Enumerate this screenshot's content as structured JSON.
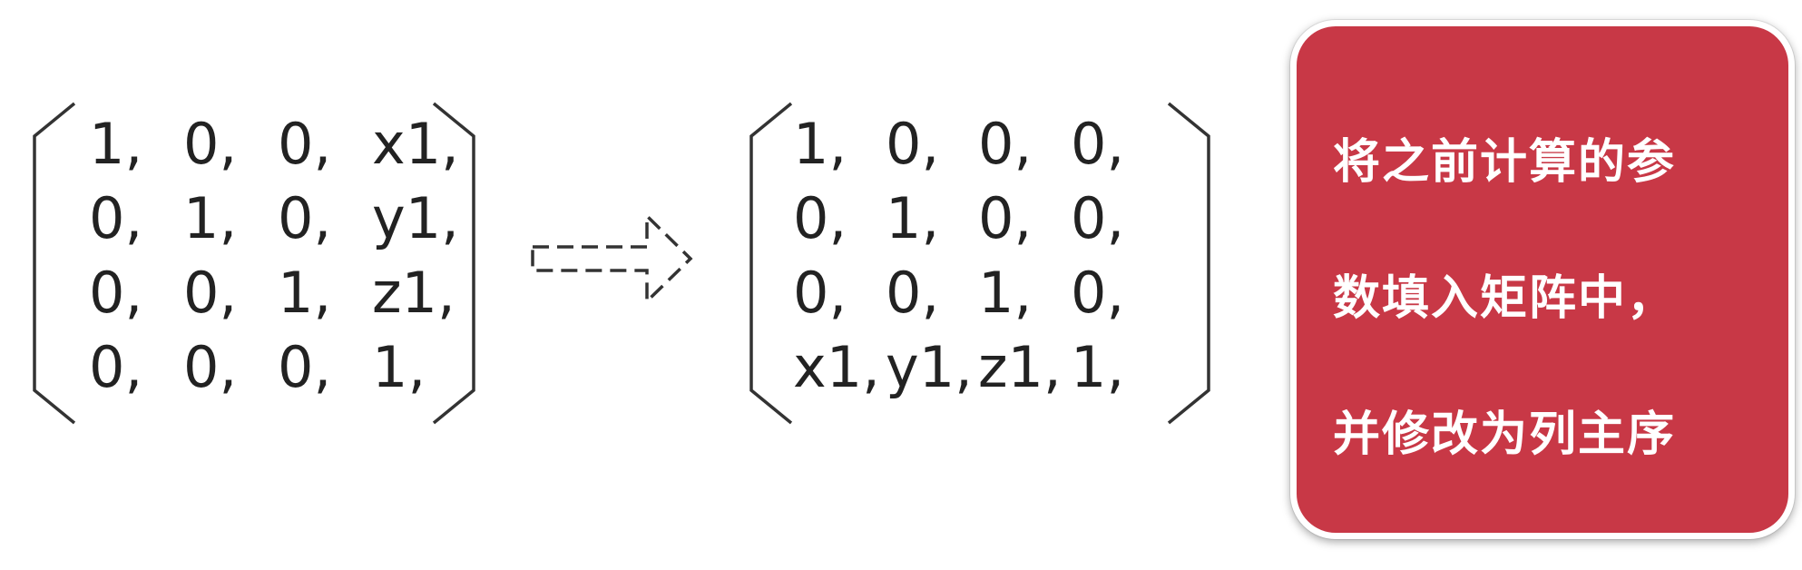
{
  "left_matrix": {
    "rows": [
      [
        "1,",
        "0,",
        "0,",
        "x1,"
      ],
      [
        "0,",
        "1,",
        "0,",
        "y1,"
      ],
      [
        "0,",
        "0,",
        "1,",
        "z1,"
      ],
      [
        "0,",
        "0,",
        "0,",
        "1,"
      ]
    ]
  },
  "right_matrix": {
    "rows": [
      [
        "1,",
        "0,",
        "0,",
        "0,"
      ],
      [
        "0,",
        "1,",
        "0,",
        "0,"
      ],
      [
        "0,",
        "0,",
        "1,",
        "0,"
      ],
      [
        "x1,",
        "y1,",
        "z1,",
        "1,"
      ]
    ]
  },
  "arrow": {
    "icon": "dashed-right-arrow-icon",
    "color": "#333333"
  },
  "note": {
    "background": "#c83846",
    "lines": [
      "将之前计算的参",
      "数填入矩阵中，",
      "并修改为列主序"
    ]
  }
}
